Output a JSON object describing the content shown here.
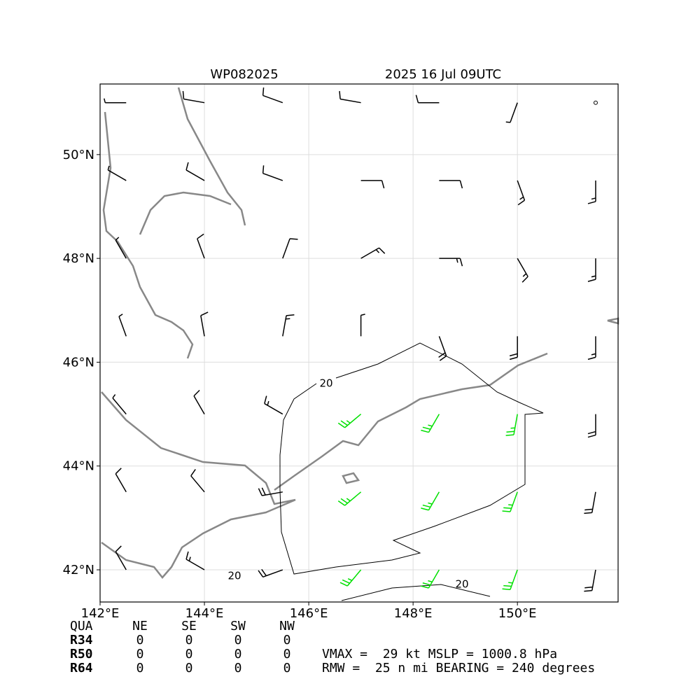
{
  "title": {
    "storm": "WP082025",
    "time": "2025 16 Jul 09UTC"
  },
  "map": {
    "xlim": [
      142,
      151.93
    ],
    "ylim": [
      41.38,
      51.36
    ],
    "xticks": [
      {
        "value": 142,
        "label": "142°E"
      },
      {
        "value": 144,
        "label": "144°E"
      },
      {
        "value": 146,
        "label": "146°E"
      },
      {
        "value": 148,
        "label": "148°E"
      },
      {
        "value": 150,
        "label": "150°E"
      }
    ],
    "yticks": [
      {
        "value": 42,
        "label": "42°N"
      },
      {
        "value": 44,
        "label": "44°N"
      },
      {
        "value": 46,
        "label": "46°N"
      },
      {
        "value": 48,
        "label": "48°N"
      },
      {
        "value": 50,
        "label": "50°N"
      }
    ],
    "grid": true,
    "wind": {
      "lons": [
        142.5,
        144,
        145.5,
        147,
        148.5,
        150,
        151.5
      ],
      "lats": [
        42,
        43.5,
        45,
        46.5,
        48,
        49.5,
        51
      ],
      "dir": [
        [
          330,
          300,
          250,
          220,
          210,
          200,
          190
        ],
        [
          330,
          320,
          260,
          230,
          210,
          200,
          190
        ],
        [
          320,
          330,
          300,
          230,
          210,
          190,
          180
        ],
        [
          340,
          350,
          10,
          0,
          160,
          180,
          180
        ],
        [
          330,
          340,
          20,
          60,
          90,
          150,
          180
        ],
        [
          300,
          300,
          290,
          90,
          90,
          160,
          180
        ],
        [
          270,
          280,
          290,
          280,
          270,
          200,
          0
        ]
      ],
      "speed": [
        [
          10,
          15,
          20,
          25,
          25,
          25,
          20
        ],
        [
          10,
          10,
          20,
          25,
          25,
          25,
          20
        ],
        [
          5,
          10,
          15,
          25,
          25,
          25,
          20
        ],
        [
          5,
          10,
          15,
          5,
          20,
          20,
          15
        ],
        [
          5,
          10,
          10,
          15,
          15,
          15,
          15
        ],
        [
          5,
          10,
          10,
          10,
          10,
          15,
          15
        ],
        [
          5,
          10,
          10,
          10,
          10,
          5,
          0
        ]
      ],
      "color": "#000000",
      "highlight_color": "#00e000",
      "highlight_min": 25
    }
  },
  "contour_labels": [
    "20",
    "20",
    "20"
  ],
  "table": {
    "header": [
      "QUA",
      "NE",
      "SE",
      "SW",
      "NW"
    ],
    "rows": [
      [
        "R34",
        0,
        0,
        0,
        0
      ],
      [
        "R50",
        0,
        0,
        0,
        0
      ],
      [
        "R64",
        0,
        0,
        0,
        0
      ]
    ]
  },
  "summary": {
    "vmax_label": "VMAX =",
    "vmax": 29,
    "vmax_unit": "kt",
    "mslp_label": "MSLP =",
    "mslp": 1000.8,
    "mslp_unit": "hPa",
    "rmw_label": "RMW =",
    "rmw": 25,
    "rmw_unit": "n mi",
    "bearing_label": "BEARING =",
    "bearing": 240,
    "bearing_unit": "degrees"
  }
}
